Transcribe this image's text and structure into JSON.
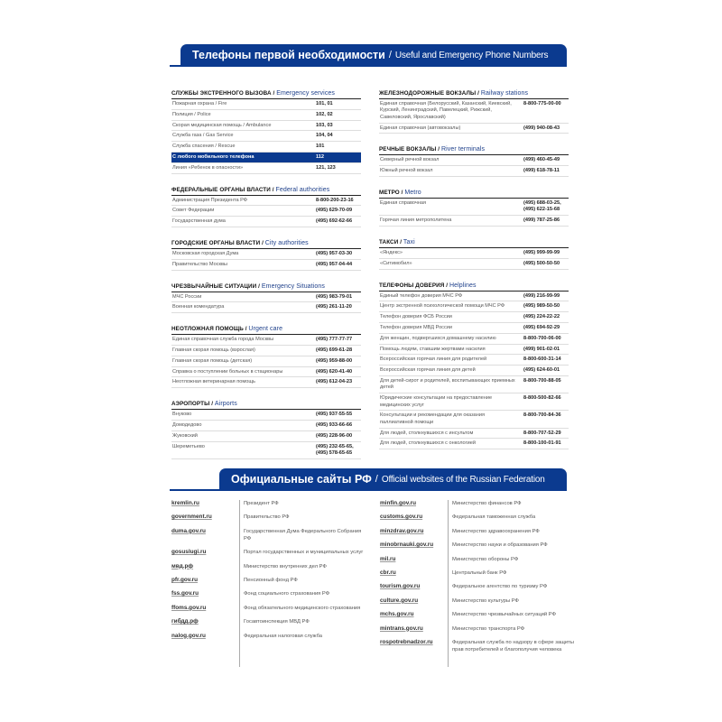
{
  "header1": {
    "ru": "Телефоны первой необходимости",
    "sep": "/",
    "en": "Useful and Emergency Phone Numbers"
  },
  "header2": {
    "ru": "Официальные сайты РФ",
    "sep": "/",
    "en": "Official websites of the Russian Federation"
  },
  "left_sections": [
    {
      "ru": "СЛУЖБЫ ЭКСТРЕННОГО ВЫЗОВА",
      "en": "Emergency services",
      "rows": [
        {
          "name": "Пожарная охрана / Fire",
          "phone": "101, 01"
        },
        {
          "name": "Полиция / Police",
          "phone": "102, 02"
        },
        {
          "name": "Скорая медицинская помощь / Ambulance",
          "phone": "103, 03"
        },
        {
          "name": "Служба газа / Gas Service",
          "phone": "104, 04"
        },
        {
          "name": "Служба спасения / Rescue",
          "phone": "101"
        },
        {
          "name": "С любого мобильного телефона",
          "phone": "112",
          "highlight": true
        },
        {
          "name": "Линия «Ребенок в опасности»",
          "phone": "121, 123"
        }
      ]
    },
    {
      "ru": "ФЕДЕРАЛЬНЫЕ ОРГАНЫ ВЛАСТИ",
      "en": "Federal authorities",
      "rows": [
        {
          "name": "Администрация Президента РФ",
          "phone": "8-800-200-23-16"
        },
        {
          "name": "Совет Федерации",
          "phone": "(495) 629-70-09"
        },
        {
          "name": "Государственная дума",
          "phone": "(495) 692-62-66"
        }
      ]
    },
    {
      "ru": "ГОРОДСКИЕ ОРГАНЫ ВЛАСТИ",
      "en": "City authorities",
      "rows": [
        {
          "name": "Московская городская Дума",
          "phone": "(495) 957-03-30"
        },
        {
          "name": "Правительство Москвы",
          "phone": "(495) 957-04-44"
        }
      ]
    },
    {
      "ru": "ЧРЕЗВЫЧАЙНЫЕ СИТУАЦИИ",
      "en": "Emergency Situations",
      "rows": [
        {
          "name": "МЧС России",
          "phone": "(495) 983-79-01"
        },
        {
          "name": "Военная комендатура",
          "phone": "(495) 261-11-20"
        }
      ]
    },
    {
      "ru": "НЕОТЛОЖНАЯ ПОМОЩЬ",
      "en": "Urgent care",
      "rows": [
        {
          "name": "Единая справочная служба города Москвы",
          "phone": "(495) 777-77-77"
        },
        {
          "name": "Главная скорая помощь (взрослая)",
          "phone": "(495) 699-61-28"
        },
        {
          "name": "Главная скорая помощь (детская)",
          "phone": "(495) 959-88-00"
        },
        {
          "name": "Справка о поступлении больных в стационары",
          "phone": "(495) 620-41-40"
        },
        {
          "name": "Неотложная ветеринарная помощь",
          "phone": "(495) 612-04-23"
        }
      ]
    },
    {
      "ru": "АЭРОПОРТЫ",
      "en": "Airports",
      "rows": [
        {
          "name": "Внуково",
          "phone": "(495) 937-55-55"
        },
        {
          "name": "Домодедово",
          "phone": "(495) 933-66-66"
        },
        {
          "name": "Жуковский",
          "phone": "(495) 228-96-00"
        },
        {
          "name": "Шереметьево",
          "phone": "(495) 232-65-65,\n(495) 578-65-65"
        }
      ]
    }
  ],
  "right_sections": [
    {
      "ru": "ЖЕЛЕЗНОДОРОЖНЫЕ ВОКЗАЛЫ",
      "en": "Railway stations",
      "rows": [
        {
          "name": "Единая справочная (Белорусский, Казанский, Киевский, Курский, Ленинградский, Павелецкий, Рижский, Савеловский, Ярославский)",
          "phone": "8-800-775-00-00"
        },
        {
          "name": "Единая справочная (автовокзалы)",
          "phone": "(499) 940-08-43"
        }
      ]
    },
    {
      "ru": "РЕЧНЫЕ ВОКЗАЛЫ",
      "en": "River terminals",
      "rows": [
        {
          "name": "Северный речной вокзал",
          "phone": "(499) 460-45-49"
        },
        {
          "name": "Южный речной вокзал",
          "phone": "(499) 618-78-11"
        }
      ]
    },
    {
      "ru": "МЕТРО",
      "en": "Metro",
      "rows": [
        {
          "name": "Единая справочная",
          "phone": "(495) 688-03-25,\n(495) 622-15-68"
        },
        {
          "name": "Горячая линия метрополитена",
          "phone": "(499) 787-25-86"
        }
      ]
    },
    {
      "ru": "ТАКСИ",
      "en": "Taxi",
      "rows": [
        {
          "name": "«Яндекс»",
          "phone": "(495) 999-99-99"
        },
        {
          "name": "«Ситимобил»",
          "phone": "(495) 500-50-50"
        }
      ]
    },
    {
      "ru": "ТЕЛЕФОНЫ ДОВЕРИЯ",
      "en": "Helplines",
      "rows": [
        {
          "name": "Единый телефон доверия МЧС РФ",
          "phone": "(499) 216-99-99"
        },
        {
          "name": "Центр экстренной психологической помощи МЧС РФ",
          "phone": "(495) 989-50-50"
        },
        {
          "name": "Телефон доверия ФСБ России",
          "phone": "(495) 224-22-22"
        },
        {
          "name": "Телефон доверия МВД России",
          "phone": "(495) 694-92-29"
        },
        {
          "name": "Для женщин, подвергшихся домашнему насилию",
          "phone": "8-800-700-06-00"
        },
        {
          "name": "Помощь людям, ставшим жертвами насилия",
          "phone": "(499) 901-02-01"
        },
        {
          "name": "Всероссийская горячая линия для родителей",
          "phone": "8-800-600-31-14"
        },
        {
          "name": "Всероссийская горячая линия для детей",
          "phone": "(495) 624-60-01"
        },
        {
          "name": "Для детей-сирот и родителей, воспитывающих приемных детей",
          "phone": "8-800-700-88-05"
        },
        {
          "name": "Юридические консультации на предоставление медицинских услуг",
          "phone": "8-800-500-82-66"
        },
        {
          "name": "Консультации и рекомендации для оказания паллиативной помощи",
          "phone": "8-800-700-84-36"
        },
        {
          "name": "Для людей, столкнувшихся с инсультом",
          "phone": "8-800-707-52-29"
        },
        {
          "name": "Для людей, столкнувшихся с онкологией",
          "phone": "8-800-100-01-91"
        }
      ]
    }
  ],
  "sites_left": [
    {
      "url": "kremlin.ru",
      "desc": "Президент РФ"
    },
    {
      "url": "government.ru",
      "desc": "Правительство РФ"
    },
    {
      "url": "duma.gov.ru",
      "desc": "Государственная Дума Федерального Собрания РФ"
    },
    {
      "url": "gosuslugi.ru",
      "desc": "Портал государственных и муниципальных услуг"
    },
    {
      "url": "мвд.рф",
      "desc": "Министерство внутренних дел РФ"
    },
    {
      "url": "pfr.gov.ru",
      "desc": "Пенсионный фонд РФ"
    },
    {
      "url": "fss.gov.ru",
      "desc": "Фонд социального страхования РФ"
    },
    {
      "url": "ffoms.gov.ru",
      "desc": "Фонд обязательного медицинского страхования"
    },
    {
      "url": "гибдд.рф",
      "desc": "Госавтоинспекция МВД РФ"
    },
    {
      "url": "nalog.gov.ru",
      "desc": "Федеральная налоговая служба"
    }
  ],
  "sites_right": [
    {
      "url": "minfin.gov.ru",
      "desc": "Министерство финансов РФ"
    },
    {
      "url": "customs.gov.ru",
      "desc": "Федеральная таможенная служба"
    },
    {
      "url": "minzdrav.gov.ru",
      "desc": "Министерство здравоохранения РФ"
    },
    {
      "url": "minobrnauki.gov.ru",
      "desc": "Министерство науки и образования РФ"
    },
    {
      "url": "mil.ru",
      "desc": "Министерство обороны РФ"
    },
    {
      "url": "cbr.ru",
      "desc": "Центральный банк РФ"
    },
    {
      "url": "tourism.gov.ru",
      "desc": "Федеральное агентство по туризму РФ"
    },
    {
      "url": "culture.gov.ru",
      "desc": "Министерство культуры РФ"
    },
    {
      "url": "mchs.gov.ru",
      "desc": "Министерство чрезвычайных ситуаций РФ"
    },
    {
      "url": "mintrans.gov.ru",
      "desc": "Министерство транспорта РФ"
    },
    {
      "url": "rospotrebnadzor.ru",
      "desc": "Федеральная служба по надзору в сфере защиты прав потребителей и благополучия человека"
    }
  ],
  "colors": {
    "brand_blue": "#0b3a8f"
  }
}
